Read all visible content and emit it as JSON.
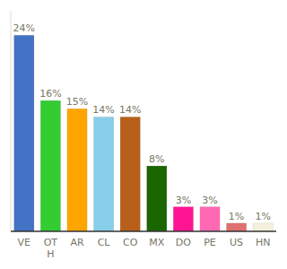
{
  "chart_data": {
    "type": "bar",
    "categories": [
      "VE",
      "OT\nH",
      "AR",
      "CL",
      "CO",
      "MX",
      "DO",
      "PE",
      "US",
      "HN"
    ],
    "values": [
      24,
      16,
      15,
      14,
      14,
      8,
      3,
      3,
      1,
      1
    ],
    "value_labels": [
      "24%",
      "16%",
      "15%",
      "14%",
      "14%",
      "8%",
      "3%",
      "3%",
      "1%",
      "1%"
    ],
    "colors": [
      "#4472C4",
      "#33CC33",
      "#FFA500",
      "#87CEEB",
      "#B8601A",
      "#1A6600",
      "#FF1493",
      "#FF69B4",
      "#E07070",
      "#F5F0DC"
    ],
    "ylim": [
      0,
      27
    ],
    "data_labels": true,
    "tick_labels": "x"
  }
}
